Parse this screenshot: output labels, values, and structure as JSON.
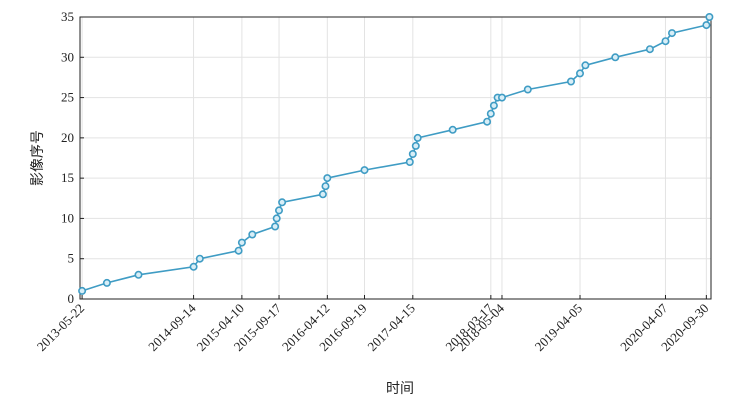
{
  "chart_data": {
    "type": "line",
    "xlabel": "时间",
    "ylabel": "影像序号",
    "ylim": [
      0,
      35
    ],
    "yticks": [
      0,
      5,
      10,
      15,
      20,
      25,
      30,
      35
    ],
    "xlim": [
      "2013-05-13",
      "2020-10-20"
    ],
    "xticks": [
      "2013-05-22",
      "2014-09-14",
      "2015-04-10",
      "2015-09-17",
      "2016-04-12",
      "2016-09-19",
      "2017-04-15",
      "2018-03-17",
      "2018-05-04",
      "2019-04-05",
      "2020-04-07",
      "2020-09-30"
    ],
    "grid": true,
    "series": [
      {
        "color": "#3f9cc4",
        "x": [
          "2013-05-22",
          "2013-09-06",
          "2014-01-20",
          "2014-09-14",
          "2014-10-11",
          "2015-03-27",
          "2015-04-10",
          "2015-05-25",
          "2015-08-31",
          "2015-09-07",
          "2015-09-17",
          "2015-09-30",
          "2016-03-24",
          "2016-04-04",
          "2016-04-12",
          "2016-09-19",
          "2017-04-02",
          "2017-04-15",
          "2017-04-28",
          "2017-05-06",
          "2017-10-04",
          "2018-03-01",
          "2018-03-17",
          "2018-03-30",
          "2018-04-15",
          "2018-05-04",
          "2018-08-23",
          "2019-02-25",
          "2019-04-05",
          "2019-04-28",
          "2019-09-04",
          "2020-01-31",
          "2020-04-07",
          "2020-05-05",
          "2020-09-30",
          "2020-10-13"
        ],
        "y": [
          1,
          2,
          3,
          4,
          5,
          6,
          7,
          8,
          9,
          10,
          11,
          12,
          13,
          14,
          15,
          16,
          17,
          18,
          19,
          20,
          21,
          22,
          23,
          24,
          25,
          25,
          26,
          27,
          28,
          29,
          30,
          31,
          32,
          33,
          34,
          35
        ]
      }
    ]
  }
}
